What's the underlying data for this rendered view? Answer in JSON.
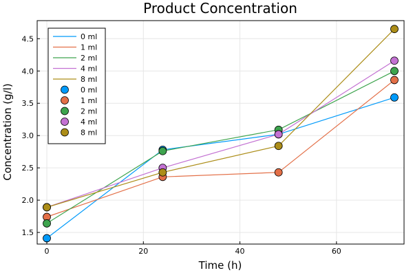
{
  "chart_data": {
    "type": "line",
    "title": "Product Concentration",
    "xlabel": "Time (h)",
    "ylabel": "Concentration (g/l)",
    "xlim": [
      -2,
      74
    ],
    "ylim": [
      1.32,
      4.78
    ],
    "x_ticks": [
      0,
      20,
      40,
      60
    ],
    "y_ticks": [
      1.5,
      2.0,
      2.5,
      3.0,
      3.5,
      4.0,
      4.5
    ],
    "x_tick_labels": [
      "0",
      "20",
      "40",
      "60"
    ],
    "y_tick_labels": [
      "1.5",
      "2.0",
      "2.5",
      "3.0",
      "3.5",
      "4.0",
      "4.5"
    ],
    "grid": true,
    "legend_position": "top-left",
    "x": [
      0,
      24,
      48,
      72
    ],
    "series": [
      {
        "name": "0 ml",
        "color": "#009AFA",
        "values": [
          1.41,
          2.78,
          3.02,
          3.59
        ]
      },
      {
        "name": "1 ml",
        "color": "#E36F47",
        "values": [
          1.74,
          2.36,
          2.43,
          3.86
        ]
      },
      {
        "name": "2 ml",
        "color": "#3EA44E",
        "values": [
          1.64,
          2.76,
          3.09,
          4.0
        ]
      },
      {
        "name": "4 ml",
        "color": "#C371D2",
        "values": [
          1.89,
          2.5,
          3.02,
          4.16
        ]
      },
      {
        "name": "8 ml",
        "color": "#AC8D18",
        "values": [
          1.89,
          2.43,
          2.84,
          4.65
        ]
      }
    ]
  }
}
